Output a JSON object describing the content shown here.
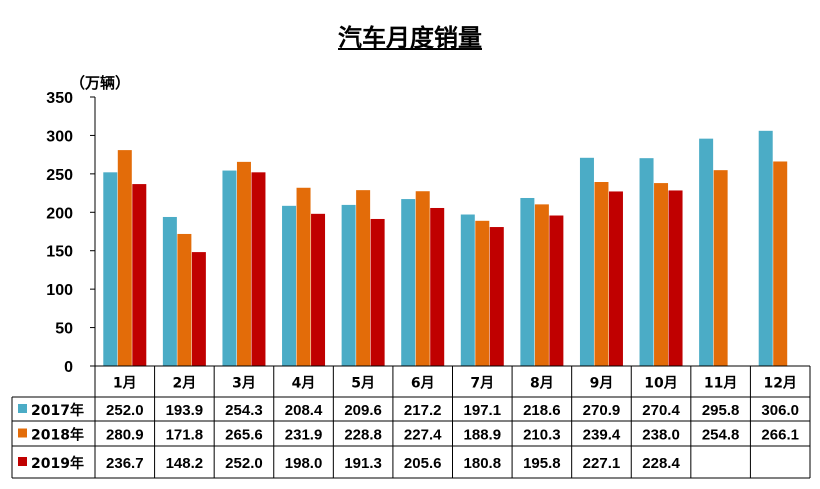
{
  "chart_data": {
    "type": "bar",
    "title": "汽车月度销量",
    "unit": "（万辆）",
    "ylim": [
      0,
      350
    ],
    "yticks": [
      "0",
      "50",
      "100",
      "150",
      "200",
      "250",
      "300",
      "350"
    ],
    "categories": [
      "1月",
      "2月",
      "3月",
      "4月",
      "5月",
      "6月",
      "7月",
      "8月",
      "9月",
      "10月",
      "11月",
      "12月"
    ],
    "grid": false,
    "legend": "data-table-left",
    "series": [
      {
        "name": "2017年",
        "color": "#4BACC6",
        "values": [
          252.0,
          193.9,
          254.3,
          208.4,
          209.6,
          217.2,
          197.1,
          218.6,
          270.9,
          270.4,
          295.8,
          306.0
        ],
        "labels": [
          "252.0",
          "193.9",
          "254.3",
          "208.4",
          "209.6",
          "217.2",
          "197.1",
          "218.6",
          "270.9",
          "270.4",
          "295.8",
          "306.0"
        ]
      },
      {
        "name": "2018年",
        "color": "#E36C09",
        "values": [
          280.9,
          171.8,
          265.6,
          231.9,
          228.8,
          227.4,
          188.9,
          210.3,
          239.4,
          238.0,
          254.8,
          266.1
        ],
        "labels": [
          "280.9",
          "171.8",
          "265.6",
          "231.9",
          "228.8",
          "227.4",
          "188.9",
          "210.3",
          "239.4",
          "238.0",
          "254.8",
          "266.1"
        ]
      },
      {
        "name": "2019年",
        "color": "#C00000",
        "values": [
          236.7,
          148.2,
          252.0,
          198.0,
          191.3,
          205.6,
          180.8,
          195.8,
          227.1,
          228.4,
          null,
          null
        ],
        "labels": [
          "236.7",
          "148.2",
          "252.0",
          "198.0",
          "191.3",
          "205.6",
          "180.8",
          "195.8",
          "227.1",
          "228.4",
          "",
          ""
        ]
      }
    ]
  }
}
